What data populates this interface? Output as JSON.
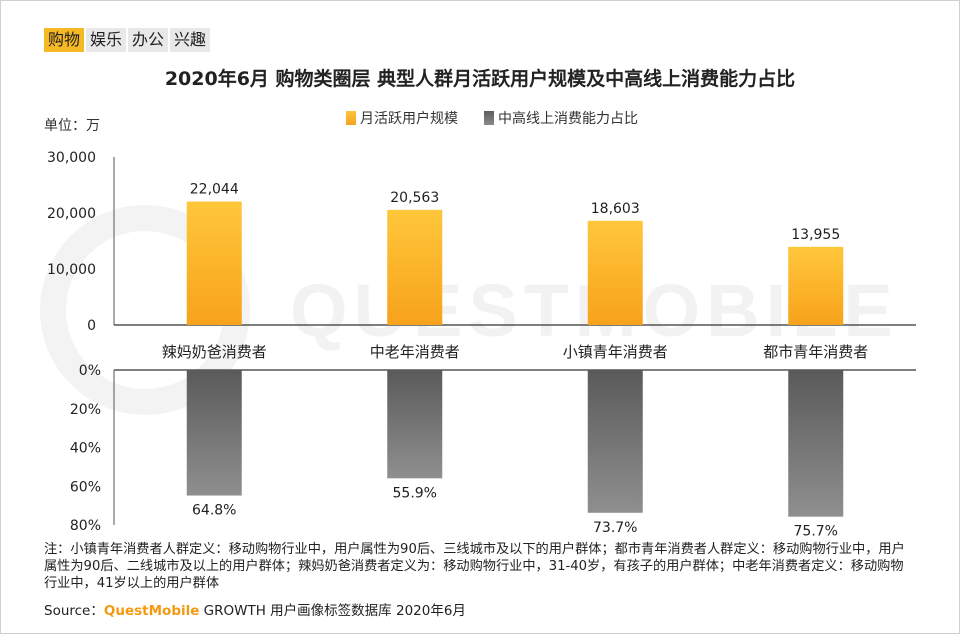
{
  "tabs": [
    {
      "label": "购物",
      "active": true
    },
    {
      "label": "娱乐",
      "active": false
    },
    {
      "label": "办公",
      "active": false
    },
    {
      "label": "兴趣",
      "active": false
    }
  ],
  "title": "2020年6月 购物类圈层 典型人群月活跃用户规模及中高线上消费能力占比",
  "unit_label": "单位：万",
  "watermark": "QUESTMOBILE",
  "chart_data": {
    "type": "bar",
    "categories": [
      "辣妈奶爸消费者",
      "中老年消费者",
      "小镇青年消费者",
      "都市青年消费者"
    ],
    "series": [
      {
        "name": "月活跃用户规模",
        "values": [
          22044,
          20563,
          18603,
          13955
        ],
        "labels": [
          "22,044",
          "20,563",
          "18,603",
          "13,955"
        ],
        "color": "#f9b323"
      },
      {
        "name": "中高线上消费能力占比",
        "values": [
          64.8,
          55.9,
          73.7,
          75.7
        ],
        "labels": [
          "64.8%",
          "55.9%",
          "73.7%",
          "75.7%"
        ],
        "color": "#7a7a7a"
      }
    ],
    "top_axis": {
      "ticks": [
        "30,000",
        "20,000",
        "10,000",
        "0"
      ],
      "tick_values": [
        30000,
        20000,
        10000,
        0
      ],
      "ylim": [
        0,
        30000
      ]
    },
    "bottom_axis": {
      "ticks": [
        "0%",
        "20%",
        "40%",
        "60%",
        "80%"
      ],
      "tick_values": [
        0,
        20,
        40,
        60,
        80
      ],
      "ylim": [
        0,
        80
      ],
      "inverted": true
    },
    "legend_position": "top-center"
  },
  "notes": "注：小镇青年消费者人群定义：移动购物行业中，用户属性为90后、三线城市及以下的用户群体；都市青年消费者人群定义：移动购物行业中，用户属性为90后、二线城市及以上的用户群体；辣妈奶爸消费者定义为：移动购物行业中，31-40岁，有孩子的用户群体；中老年消费者定义：移动购物行业中，41岁以上的用户群体",
  "source": {
    "prefix": "Source：",
    "brand": "QuestMobile",
    "suffix": " GROWTH 用户画像标签数据库 2020年6月"
  }
}
